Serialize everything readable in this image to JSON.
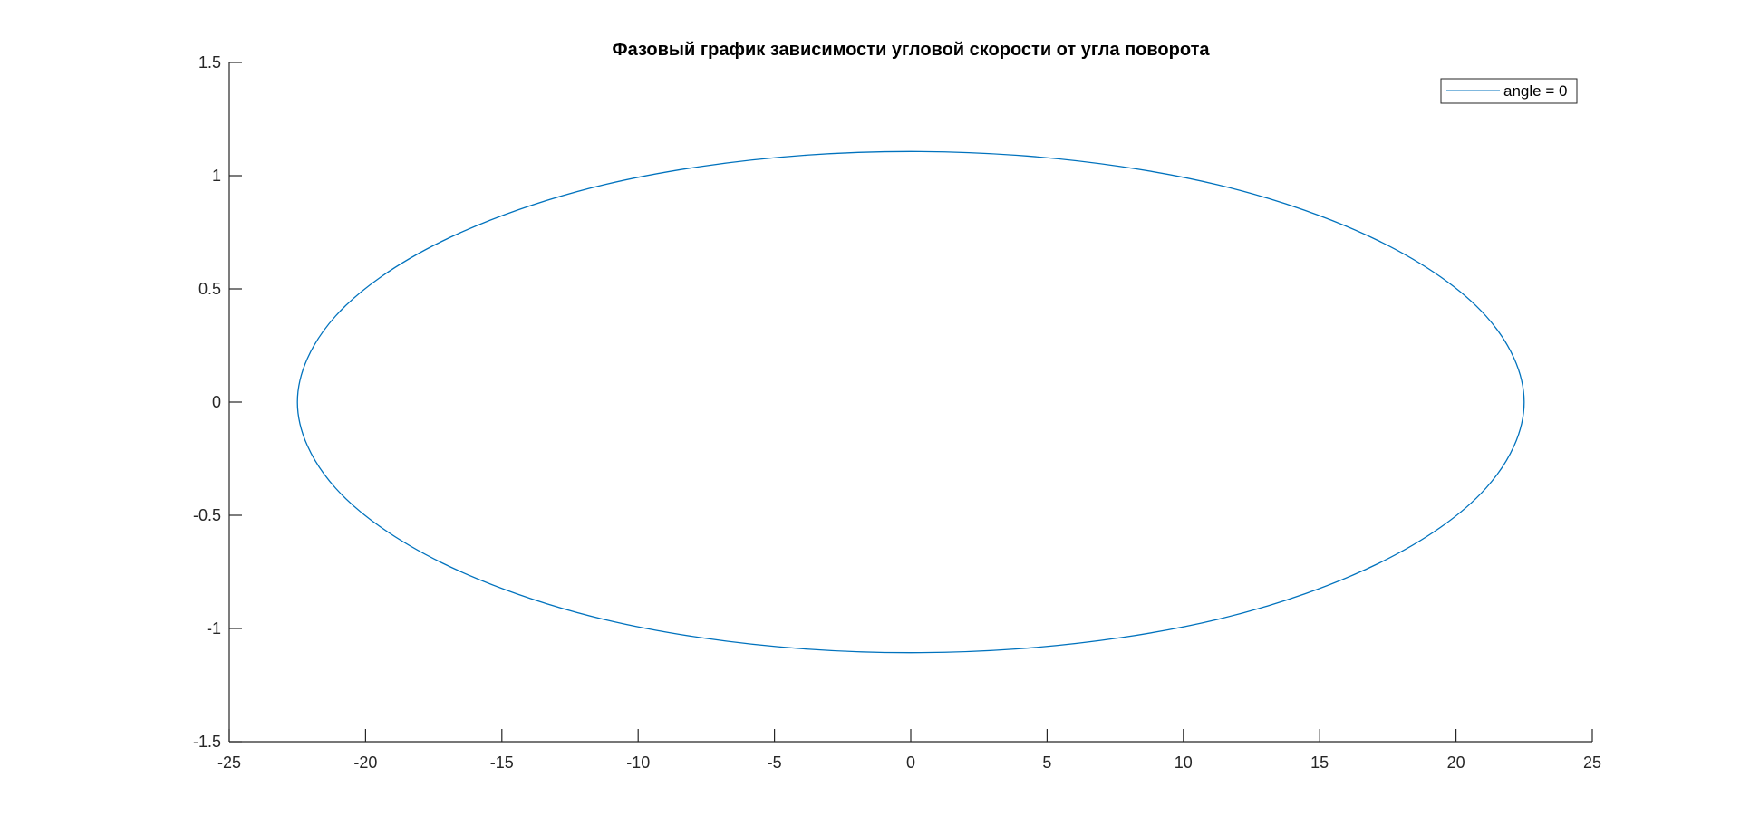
{
  "chart_data": {
    "type": "line",
    "title": "Фазовый график зависимости угловой скорости от угла поворота",
    "xlabel": "",
    "ylabel": "",
    "xlim": [
      -25,
      25
    ],
    "ylim": [
      -1.5,
      1.5
    ],
    "xticks": [
      -25,
      -20,
      -15,
      -10,
      -5,
      0,
      5,
      10,
      15,
      20,
      25
    ],
    "yticks": [
      -1.5,
      -1,
      -0.5,
      0,
      0.5,
      1,
      1.5
    ],
    "xtick_labels": [
      "-25",
      "-20",
      "-15",
      "-10",
      "-5",
      "0",
      "5",
      "10",
      "15",
      "20",
      "25"
    ],
    "ytick_labels": [
      "-1.5",
      "-1",
      "-0.5",
      "0",
      "0.5",
      "1",
      "1.5"
    ],
    "grid": false,
    "legend_position": "top-right",
    "series": [
      {
        "name": "angle = 0",
        "color": "#0072BD",
        "shape": "closed ellipse",
        "x": [
          22.5,
          21.1,
          17.2,
          11.25,
          3.9,
          -3.9,
          -11.25,
          -17.2,
          -21.1,
          -22.5,
          -21.1,
          -17.2,
          -11.25,
          -3.9,
          3.9,
          11.25,
          17.2,
          21.1,
          22.5
        ],
        "y": [
          0,
          0.38,
          0.71,
          0.96,
          1.09,
          1.09,
          0.96,
          0.71,
          0.38,
          0,
          -0.38,
          -0.71,
          -0.96,
          -1.09,
          -1.09,
          -0.96,
          -0.71,
          -0.38,
          0
        ]
      }
    ]
  }
}
